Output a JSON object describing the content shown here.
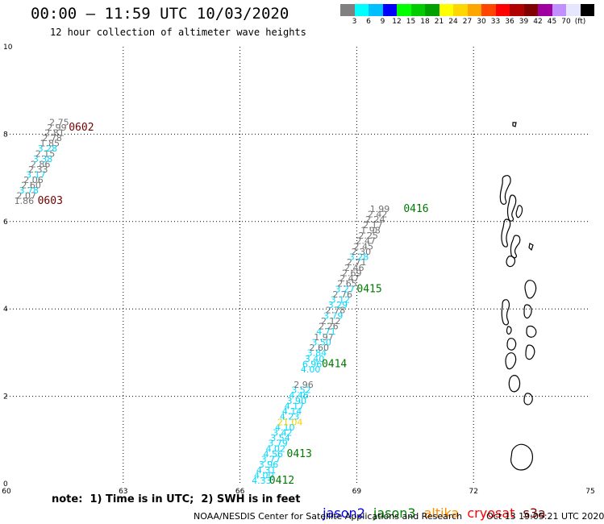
{
  "header": {
    "title": "00:00 – 11:59 UTC 10/03/2020",
    "subtitle": "12 hour collection of altimeter wave heights"
  },
  "legend": {
    "colors": [
      "#808080",
      "#00ffff",
      "#00bfff",
      "#0000ff",
      "#00ff00",
      "#00cc00",
      "#00a000",
      "#ffff00",
      "#ffd700",
      "#ffa500",
      "#ff4500",
      "#ff0000",
      "#b00000",
      "#800000",
      "#a000a0",
      "#c090ff",
      "#e6e6ff",
      "#000000"
    ],
    "labels": [
      "3",
      "6",
      "9",
      "12",
      "15",
      "18",
      "21",
      "24",
      "27",
      "30",
      "33",
      "36",
      "39",
      "42",
      "45",
      "70",
      "(ft)"
    ]
  },
  "axes": {
    "x_ticks": [
      "60",
      "63",
      "66",
      "69",
      "72",
      "75"
    ],
    "x_values": [
      60,
      63,
      66,
      69,
      72,
      75
    ],
    "y_ticks": [
      "0",
      "2",
      "4",
      "6",
      "8",
      "10"
    ],
    "y_values": [
      0,
      2,
      4,
      6,
      8,
      10
    ],
    "xlim": [
      60,
      75
    ],
    "ylim": [
      0,
      10
    ]
  },
  "colors": {
    "gray": "#707070",
    "cyan": "#00d8ff",
    "yellow": "#f0d000",
    "time_dark": "#700000",
    "time_green": "#007a00",
    "coast": "#000000",
    "grid": "#000000"
  },
  "tracks": [
    {
      "values": [
        {
          "v": "4.33",
          "x": 66.3,
          "y": 0.0,
          "c": "cyan"
        },
        {
          "v": "4.00",
          "x": 66.36,
          "y": 0.12,
          "c": "cyan"
        },
        {
          "v": "4.31",
          "x": 66.42,
          "y": 0.24,
          "c": "cyan"
        },
        {
          "v": "3.96",
          "x": 66.48,
          "y": 0.37,
          "c": "cyan"
        },
        {
          "v": "3.77",
          "x": 66.54,
          "y": 0.49,
          "c": "cyan"
        },
        {
          "v": "4.56",
          "x": 66.6,
          "y": 0.61,
          "c": "cyan"
        },
        {
          "v": "4.02",
          "x": 66.66,
          "y": 0.73,
          "c": "cyan"
        },
        {
          "v": "3.79",
          "x": 66.72,
          "y": 0.86,
          "c": "cyan"
        },
        {
          "v": "3.54",
          "x": 66.78,
          "y": 0.98,
          "c": "cyan"
        },
        {
          "v": "3.42",
          "x": 66.84,
          "y": 1.1,
          "c": "cyan"
        },
        {
          "v": "4.10",
          "x": 66.9,
          "y": 1.22,
          "c": "cyan"
        },
        {
          "v": "21.04",
          "x": 66.96,
          "y": 1.34,
          "c": "yellow"
        },
        {
          "v": "4.23",
          "x": 67.02,
          "y": 1.47,
          "c": "cyan"
        },
        {
          "v": "4.14",
          "x": 67.08,
          "y": 1.59,
          "c": "cyan"
        },
        {
          "v": "4.17",
          "x": 67.14,
          "y": 1.71,
          "c": "cyan"
        },
        {
          "v": "3.90",
          "x": 67.2,
          "y": 1.83,
          "c": "cyan"
        },
        {
          "v": "4.46",
          "x": 67.26,
          "y": 1.96,
          "c": "cyan"
        },
        {
          "v": "3.52",
          "x": 67.32,
          "y": 2.08,
          "c": "cyan"
        },
        {
          "v": "2.96",
          "x": 67.38,
          "y": 2.2,
          "c": "gray"
        },
        {
          "v": "4.00",
          "x": 67.56,
          "y": 2.55,
          "c": "cyan"
        },
        {
          "v": "6.96",
          "x": 67.6,
          "y": 2.67,
          "c": "cyan"
        },
        {
          "v": "3.40",
          "x": 67.66,
          "y": 2.79,
          "c": "cyan"
        },
        {
          "v": "3.84",
          "x": 67.72,
          "y": 2.92,
          "c": "cyan"
        },
        {
          "v": "2.60",
          "x": 67.78,
          "y": 3.04,
          "c": "gray"
        },
        {
          "v": "3.50",
          "x": 67.84,
          "y": 3.16,
          "c": "cyan"
        },
        {
          "v": "1.97",
          "x": 67.9,
          "y": 3.28,
          "c": "gray"
        },
        {
          "v": "4.71",
          "x": 67.96,
          "y": 3.41,
          "c": "cyan"
        },
        {
          "v": "2.26",
          "x": 68.02,
          "y": 3.53,
          "c": "gray"
        },
        {
          "v": "2.12",
          "x": 68.08,
          "y": 3.65,
          "c": "gray"
        },
        {
          "v": "3.79",
          "x": 68.14,
          "y": 3.77,
          "c": "cyan"
        },
        {
          "v": "2.78",
          "x": 68.2,
          "y": 3.9,
          "c": "gray"
        },
        {
          "v": "3.29",
          "x": 68.26,
          "y": 4.02,
          "c": "cyan"
        },
        {
          "v": "3.12",
          "x": 68.32,
          "y": 4.14,
          "c": "cyan"
        },
        {
          "v": "2.76",
          "x": 68.38,
          "y": 4.26,
          "c": "gray"
        },
        {
          "v": "3.27",
          "x": 68.44,
          "y": 4.38,
          "c": "cyan"
        },
        {
          "v": "2.65",
          "x": 68.5,
          "y": 4.51,
          "c": "gray"
        },
        {
          "v": "2.47",
          "x": 68.56,
          "y": 4.63,
          "c": "gray"
        },
        {
          "v": "2.69",
          "x": 68.62,
          "y": 4.75,
          "c": "gray"
        },
        {
          "v": "2.46",
          "x": 68.68,
          "y": 4.87,
          "c": "gray"
        },
        {
          "v": "2.71",
          "x": 68.74,
          "y": 5.0,
          "c": "gray"
        },
        {
          "v": "3.28",
          "x": 68.8,
          "y": 5.12,
          "c": "cyan"
        },
        {
          "v": "2.30",
          "x": 68.86,
          "y": 5.24,
          "c": "gray"
        },
        {
          "v": "2.45",
          "x": 68.92,
          "y": 5.36,
          "c": "gray"
        },
        {
          "v": "2.47",
          "x": 68.98,
          "y": 5.49,
          "c": "gray"
        },
        {
          "v": "2.25",
          "x": 69.04,
          "y": 5.61,
          "c": "gray"
        },
        {
          "v": "1.98",
          "x": 69.1,
          "y": 5.73,
          "c": "gray"
        },
        {
          "v": "2.17",
          "x": 69.16,
          "y": 5.85,
          "c": "gray"
        },
        {
          "v": "2.24",
          "x": 69.22,
          "y": 5.98,
          "c": "gray"
        },
        {
          "v": "2.42",
          "x": 69.28,
          "y": 6.1,
          "c": "gray"
        },
        {
          "v": "1.99",
          "x": 69.34,
          "y": 6.22,
          "c": "gray"
        }
      ]
    },
    {
      "values": [
        {
          "v": "1.86",
          "x": 60.2,
          "y": 6.4,
          "c": "gray"
        },
        {
          "v": "2.07",
          "x": 60.26,
          "y": 6.52,
          "c": "gray"
        },
        {
          "v": "3.78",
          "x": 60.32,
          "y": 6.64,
          "c": "cyan"
        },
        {
          "v": "2.60",
          "x": 60.38,
          "y": 6.76,
          "c": "gray"
        },
        {
          "v": "2.06",
          "x": 60.44,
          "y": 6.88,
          "c": "gray"
        },
        {
          "v": "3.17",
          "x": 60.5,
          "y": 7.0,
          "c": "cyan"
        },
        {
          "v": "2.33",
          "x": 60.56,
          "y": 7.12,
          "c": "gray"
        },
        {
          "v": "2.86",
          "x": 60.62,
          "y": 7.24,
          "c": "gray"
        },
        {
          "v": "3.38",
          "x": 60.68,
          "y": 7.36,
          "c": "cyan"
        },
        {
          "v": "2.15",
          "x": 60.74,
          "y": 7.48,
          "c": "gray"
        },
        {
          "v": "3.28",
          "x": 60.8,
          "y": 7.6,
          "c": "cyan"
        },
        {
          "v": "1.85",
          "x": 60.86,
          "y": 7.72,
          "c": "gray"
        },
        {
          "v": "2.78",
          "x": 60.92,
          "y": 7.84,
          "c": "gray"
        },
        {
          "v": "2.81",
          "x": 60.98,
          "y": 7.96,
          "c": "gray"
        },
        {
          "v": "2.99",
          "x": 61.04,
          "y": 8.08,
          "c": "gray"
        },
        {
          "v": "2.75",
          "x": 61.1,
          "y": 8.2,
          "c": "gray"
        }
      ]
    }
  ],
  "time_labels": [
    {
      "t": "0412",
      "x": 66.75,
      "y": 0.0,
      "c": "time_green"
    },
    {
      "t": "0413",
      "x": 67.2,
      "y": 0.61,
      "c": "time_green"
    },
    {
      "t": "0414",
      "x": 68.1,
      "y": 2.67,
      "c": "time_green"
    },
    {
      "t": "0415",
      "x": 69.0,
      "y": 4.38,
      "c": "time_green"
    },
    {
      "t": "0416",
      "x": 70.2,
      "y": 6.22,
      "c": "time_green"
    },
    {
      "t": "0603",
      "x": 60.8,
      "y": 6.4,
      "c": "time_dark"
    },
    {
      "t": "0602",
      "x": 61.6,
      "y": 8.08,
      "c": "time_dark"
    }
  ],
  "footer": {
    "note": "note:  1) Time is in UTC;  2) SWH is in feet",
    "satellites": [
      {
        "name": "jason2",
        "color": "#0000ff"
      },
      {
        "name": "jason3",
        "color": "#008000"
      },
      {
        "name": "altika",
        "color": "#ff8c00"
      },
      {
        "name": "cryosat",
        "color": "#ff0000"
      },
      {
        "name": "s3a",
        "color": "#800000"
      }
    ],
    "credit": "NOAA/NESDIS Center for Satellite Applications and Research",
    "timestamp": "Oct 13 19:05:21 UTC 2020"
  }
}
